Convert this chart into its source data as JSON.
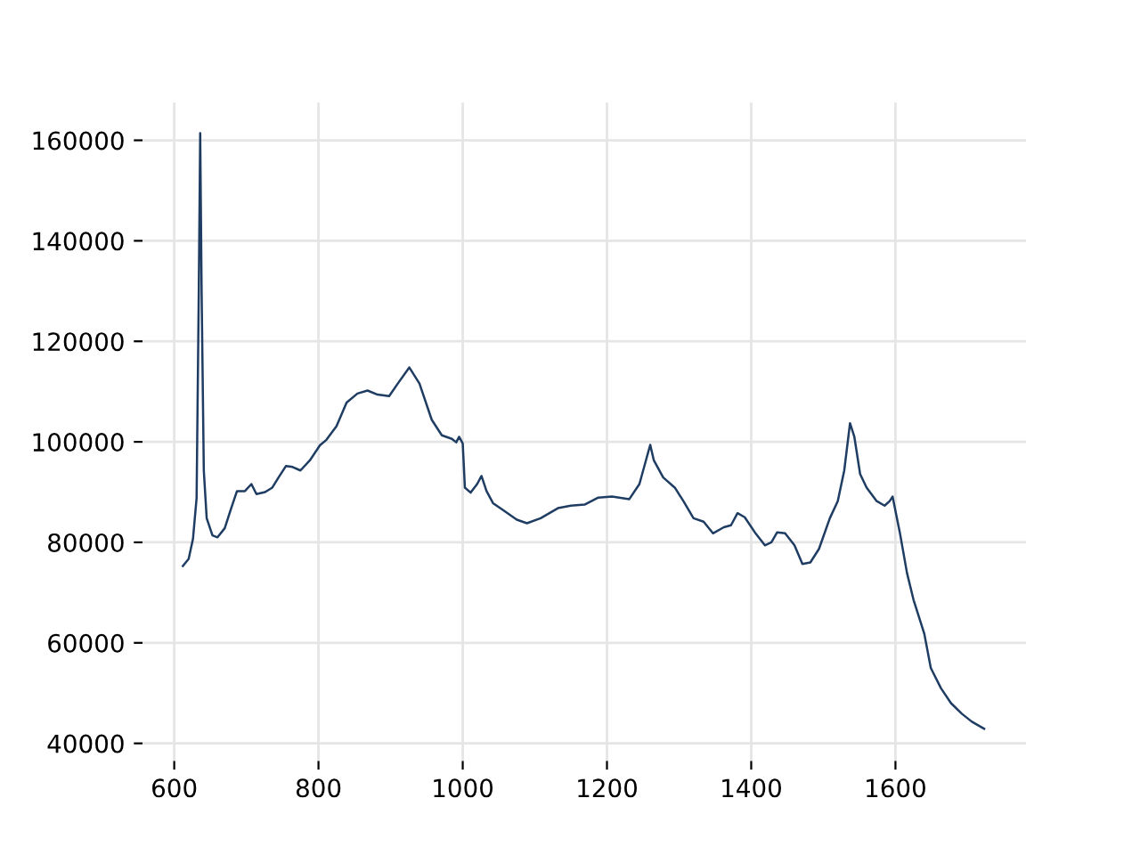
{
  "chart_data": {
    "type": "line",
    "color": "#1f3d63",
    "grid": true,
    "xlim": [
      556,
      1781
    ],
    "ylim": [
      36500,
      167500
    ],
    "xticks": [
      600,
      800,
      1000,
      1200,
      1400,
      1600
    ],
    "yticks": [
      40000,
      60000,
      80000,
      100000,
      120000,
      140000,
      160000
    ],
    "x": [
      612,
      620,
      626,
      631,
      634,
      636,
      638,
      641,
      645,
      653,
      660,
      670,
      679,
      687,
      698,
      707,
      714,
      726,
      736,
      745,
      755,
      764,
      775,
      788,
      802,
      811,
      825,
      839,
      854,
      868,
      882,
      898,
      910,
      926,
      940,
      957,
      971,
      985,
      991,
      995,
      1000,
      1003,
      1011,
      1020,
      1026,
      1033,
      1042,
      1056,
      1075,
      1089,
      1108,
      1132,
      1150,
      1169,
      1188,
      1207,
      1231,
      1245,
      1254,
      1260,
      1265,
      1278,
      1294,
      1306,
      1320,
      1334,
      1347,
      1362,
      1372,
      1381,
      1391,
      1405,
      1419,
      1428,
      1436,
      1447,
      1460,
      1471,
      1482,
      1494,
      1509,
      1520,
      1529,
      1537,
      1543,
      1551,
      1560,
      1574,
      1585,
      1592,
      1596,
      1606,
      1616,
      1625,
      1640,
      1649,
      1663,
      1677,
      1692,
      1706,
      1723
    ],
    "values": [
      75300,
      76700,
      80700,
      88800,
      129400,
      161400,
      129400,
      94300,
      84800,
      81400,
      81000,
      82800,
      86800,
      90200,
      90200,
      91600,
      89600,
      90000,
      90900,
      93000,
      95200,
      95000,
      94300,
      96300,
      99300,
      100400,
      103100,
      107800,
      109600,
      110200,
      109400,
      109100,
      111600,
      114800,
      111600,
      104400,
      101300,
      100600,
      99900,
      101000,
      99700,
      90900,
      89900,
      91600,
      93200,
      90200,
      87800,
      86400,
      84500,
      83800,
      84800,
      86800,
      87300,
      87500,
      88900,
      89100,
      88600,
      91600,
      96300,
      99400,
      96300,
      92900,
      90900,
      88200,
      84800,
      84100,
      81800,
      83000,
      83400,
      85800,
      85000,
      82000,
      79400,
      80000,
      82000,
      81800,
      79400,
      75700,
      76000,
      78700,
      84800,
      88200,
      94300,
      103700,
      101000,
      93600,
      90900,
      88200,
      87300,
      88200,
      89100,
      82000,
      73900,
      68600,
      61800,
      55000,
      51000,
      48000,
      45900,
      44300,
      42900
    ]
  }
}
